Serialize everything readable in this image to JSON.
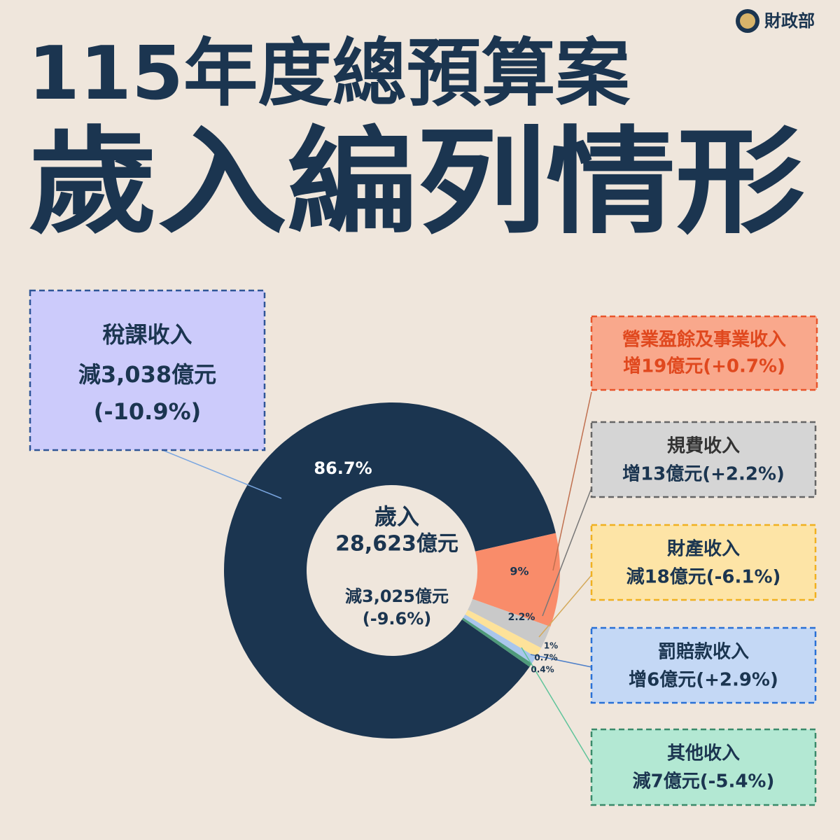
{
  "brand": "財政部",
  "title_line1": "115年度總預算案",
  "title_line2": "歲入編列情形",
  "chart_data": {
    "type": "donut",
    "center_labels": [
      "歲入",
      "28,623億元",
      "減3,025億元",
      "(-9.6%)"
    ],
    "categories": [
      "稅課收入",
      "營業盈餘及事業收入",
      "規費收入",
      "財產收入",
      "罰賠款收入",
      "其他收入"
    ],
    "values": [
      86.7,
      9,
      2.2,
      1,
      0.7,
      0.4
    ],
    "value_labels": [
      "86.7%",
      "9%",
      "2.2%",
      "1%",
      "0.7%",
      "0.4%"
    ],
    "colors": [
      "#1b3550",
      "#f98c6a",
      "#c9c9c9",
      "#fde29a",
      "#a9c6ec",
      "#4e9a7a"
    ],
    "annotations": [
      [
        "減3,038億元",
        "(-10.9%)"
      ],
      [
        "增19億元(+0.7%)"
      ],
      [
        "增13億元(+2.2%)"
      ],
      [
        "減18億元(-6.1%)"
      ],
      [
        "增6億元(+2.9%)"
      ],
      [
        "減7億元(-5.4%)"
      ]
    ]
  }
}
